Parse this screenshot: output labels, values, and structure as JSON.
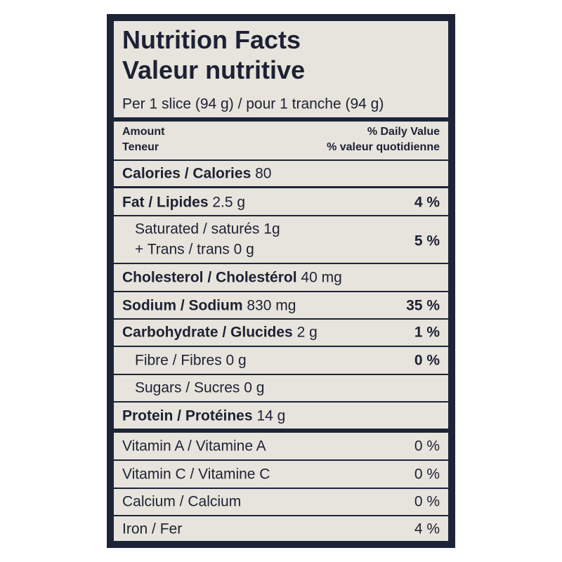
{
  "header": {
    "title": "Nutrition Facts",
    "subtitle": "Valeur nutritive",
    "serving": "Per 1 slice (94 g) / pour 1 tranche (94 g)"
  },
  "columns": {
    "amount": "Amount",
    "amount_fr": "Teneur",
    "daily_value": "% Daily Value",
    "daily_value_fr": "% valeur quotidienne"
  },
  "rows": [
    {
      "label": "Calories / Calories",
      "amount": "80"
    },
    {
      "label": "Fat / Lipides",
      "amount": "2.5 g",
      "dv": "4 %"
    },
    {
      "label": "Saturated / saturés",
      "amount": "1g",
      "label2": "+ Trans / trans",
      "amount2": "0 g",
      "dv": "5 %"
    },
    {
      "label": "Cholesterol / Cholestérol",
      "amount": "40 mg"
    },
    {
      "label": "Sodium / Sodium",
      "amount": "830 mg",
      "dv": "35 %"
    },
    {
      "label": "Carbohydrate / Glucides",
      "amount": "2 g",
      "dv": "1 %"
    },
    {
      "label": "Fibre / Fibres",
      "amount": "0 g",
      "dv": "0 %"
    },
    {
      "label": "Sugars / Sucres",
      "amount": "0 g"
    },
    {
      "label": "Protein / Protéines",
      "amount": "14 g"
    },
    {
      "label": "Vitamin A / Vitamine A",
      "dv": "0 %"
    },
    {
      "label": "Vitamin C / Vitamine C",
      "dv": "0 %"
    },
    {
      "label": "Calcium / Calcium",
      "dv": "0 %"
    },
    {
      "label": "Iron / Fer",
      "dv": "4 %"
    }
  ]
}
